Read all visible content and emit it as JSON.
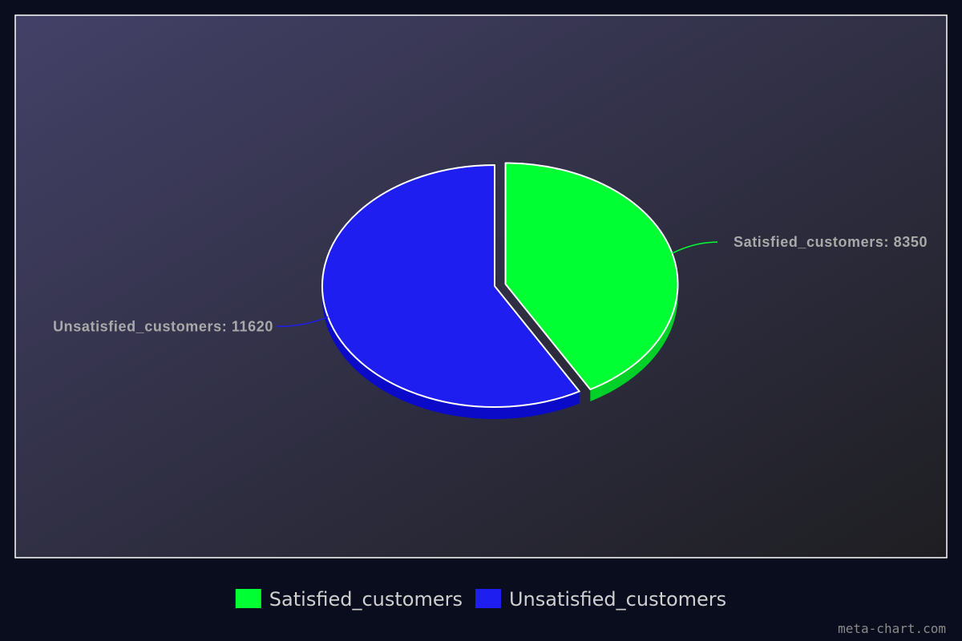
{
  "chart_data": {
    "type": "pie",
    "title": "",
    "slices": [
      {
        "label": "Satisfied_customers",
        "value": 8350,
        "color": "#00ff33",
        "depth_color": "#00d027",
        "data_label": "Satisfied_customers: 8350",
        "exploded": true
      },
      {
        "label": "Unsatisfied_customers",
        "value": 11620,
        "color": "#1e1ef0",
        "depth_color": "#0a0ac8",
        "data_label": "Unsatisfied_customers: 11620",
        "exploded": false
      }
    ],
    "legend": {
      "placement": "bottom-center"
    },
    "style": "3d"
  },
  "colors": {
    "page_bg": "#0a0d1e",
    "plot_bg_start": "#434167",
    "plot_bg_end": "#1e1e22",
    "plot_border": "#ffffff"
  },
  "watermark": "meta-chart.com"
}
